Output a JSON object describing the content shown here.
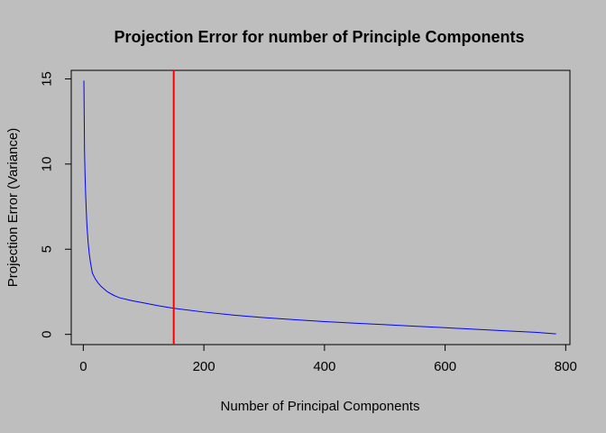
{
  "chart_data": {
    "type": "line",
    "title": "Projection Error for number of Principle Components",
    "xlabel": "Number of Principal Components",
    "ylabel": "Projection Error (Variance)",
    "xlim": [
      -20,
      807
    ],
    "ylim": [
      -0.6,
      15.5
    ],
    "x_ticks": [
      0,
      200,
      400,
      600,
      800
    ],
    "y_ticks": [
      0,
      5,
      10,
      15
    ],
    "x_tick_labels": [
      "0",
      "200",
      "400",
      "600",
      "800"
    ],
    "y_tick_labels": [
      "0",
      "5",
      "10",
      "15"
    ],
    "grid": false,
    "legend": "none",
    "series": [
      {
        "color": "#0000ff",
        "x": [
          1,
          2,
          3,
          4,
          5,
          6,
          8,
          10,
          12,
          15,
          20,
          25,
          30,
          40,
          50,
          60,
          80,
          100,
          125,
          150,
          200,
          250,
          300,
          350,
          400,
          450,
          500,
          550,
          600,
          650,
          700,
          750,
          784
        ],
        "y": [
          14.9,
          10.8,
          9.2,
          8.1,
          7.2,
          6.4,
          5.4,
          4.7,
          4.2,
          3.6,
          3.25,
          3.0,
          2.8,
          2.5,
          2.3,
          2.15,
          1.98,
          1.85,
          1.68,
          1.53,
          1.31,
          1.13,
          0.98,
          0.86,
          0.75,
          0.66,
          0.57,
          0.48,
          0.39,
          0.3,
          0.21,
          0.12,
          0.03
        ]
      }
    ],
    "vlines": [
      {
        "x": 150,
        "color": "#ff0000"
      }
    ]
  }
}
